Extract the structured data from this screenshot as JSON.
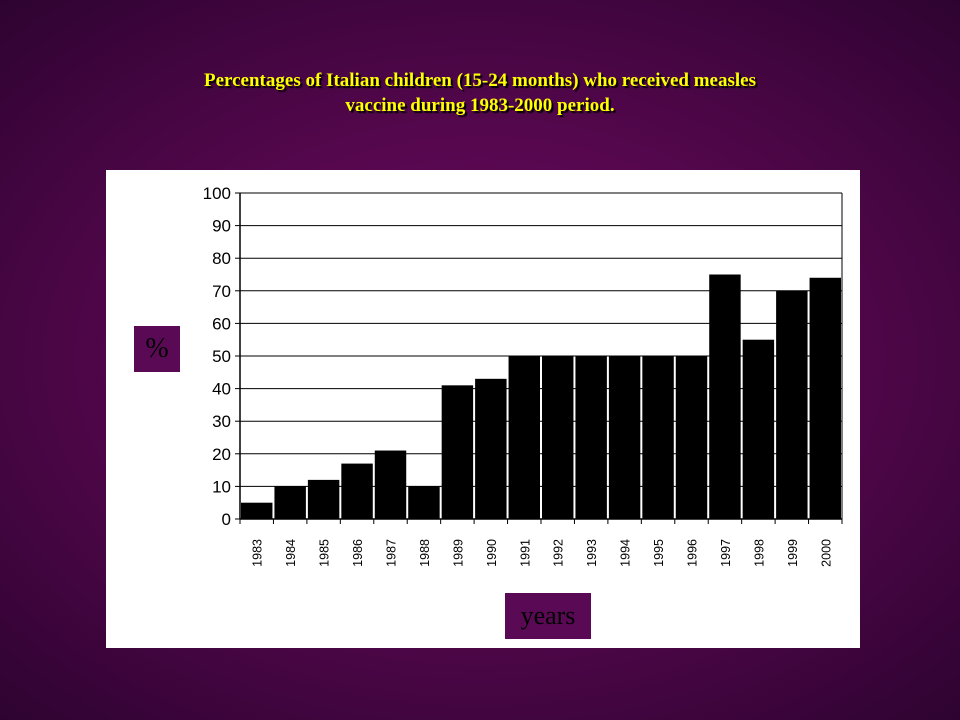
{
  "chart_data": {
    "type": "bar",
    "title_line1": "Percentages of Italian children (15-24 months) who received measles",
    "title_line2": "vaccine during 1983-2000 period.",
    "xlabel": "years",
    "ylabel": "%",
    "ylim": [
      0,
      100
    ],
    "yticks": [
      "0",
      "10",
      "20",
      "30",
      "40",
      "50",
      "60",
      "70",
      "80",
      "90",
      "100"
    ],
    "categories": [
      "1983",
      "1984",
      "1985",
      "1986",
      "1987",
      "1988",
      "1989",
      "1990",
      "1991",
      "1992",
      "1993",
      "1994",
      "1995",
      "1996",
      "1997",
      "1998",
      "1999",
      "2000"
    ],
    "values": [
      5,
      10,
      12,
      17,
      21,
      10,
      41,
      43,
      50,
      50,
      50,
      50,
      50,
      50,
      75,
      55,
      70,
      74
    ],
    "grid": true,
    "legend": "none",
    "bar_color": "#000000"
  }
}
